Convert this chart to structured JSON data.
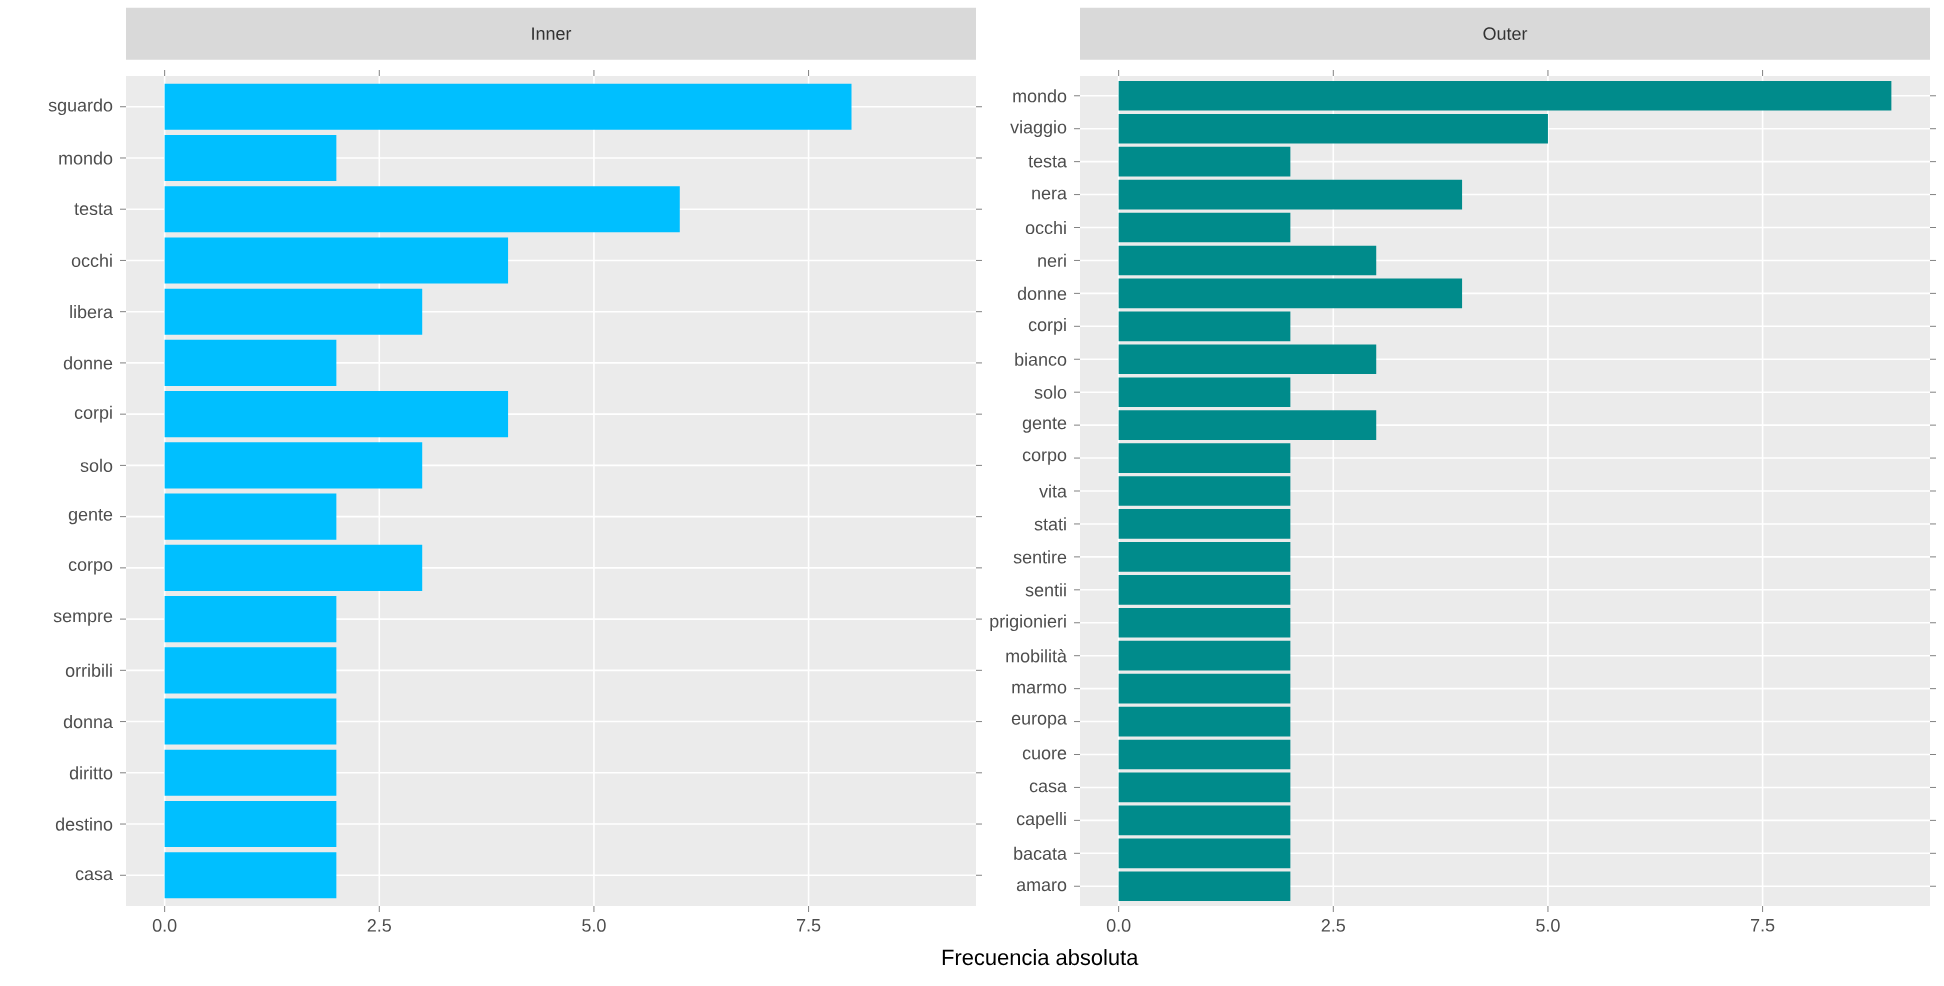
{
  "chart_data": [
    {
      "type": "bar",
      "orientation": "horizontal",
      "title": "Inner",
      "xlabel": "Frecuencia absoluta",
      "categories": [
        "sguardo",
        "mondo",
        "testa",
        "occhi",
        "libera",
        "donne",
        "corpi",
        "solo",
        "gente",
        "corpo",
        "sempre",
        "orribili",
        "donna",
        "diritto",
        "destino",
        "casa"
      ],
      "values": [
        8,
        2,
        6,
        4,
        3,
        2,
        4,
        3,
        2,
        3,
        2,
        2,
        2,
        2,
        2,
        2
      ],
      "color": "#00bfff",
      "xlim": [
        -0.45,
        9.45
      ],
      "xticks": [
        {
          "value": 0,
          "label": "0.0"
        },
        {
          "value": 2.5,
          "label": "2.5"
        },
        {
          "value": 5,
          "label": "5.0"
        },
        {
          "value": 7.5,
          "label": "7.5"
        }
      ],
      "grid": true
    },
    {
      "type": "bar",
      "orientation": "horizontal",
      "title": "Outer",
      "categories": [
        "mondo",
        "viaggio",
        "testa",
        "nera",
        "occhi",
        "neri",
        "donne",
        "corpi",
        "bianco",
        "solo",
        "gente",
        "corpo",
        "vita",
        "stati",
        "sentire",
        "sentii",
        "prigionieri",
        "mobilità",
        "marmo",
        "europa",
        "cuore",
        "casa",
        "capelli",
        "bacata",
        "amaro"
      ],
      "values": [
        9,
        5,
        2,
        4,
        2,
        3,
        4,
        2,
        3,
        2,
        3,
        2,
        2,
        2,
        2,
        2,
        2,
        2,
        2,
        2,
        2,
        2,
        2,
        2,
        2
      ],
      "color": "#008b8b",
      "xlim": [
        -0.45,
        9.45
      ],
      "xticks": [
        {
          "value": 0,
          "label": "0.0"
        },
        {
          "value": 2.5,
          "label": "2.5"
        },
        {
          "value": 5,
          "label": "5.0"
        },
        {
          "value": 7.5,
          "label": "7.5"
        }
      ],
      "grid": true
    }
  ]
}
